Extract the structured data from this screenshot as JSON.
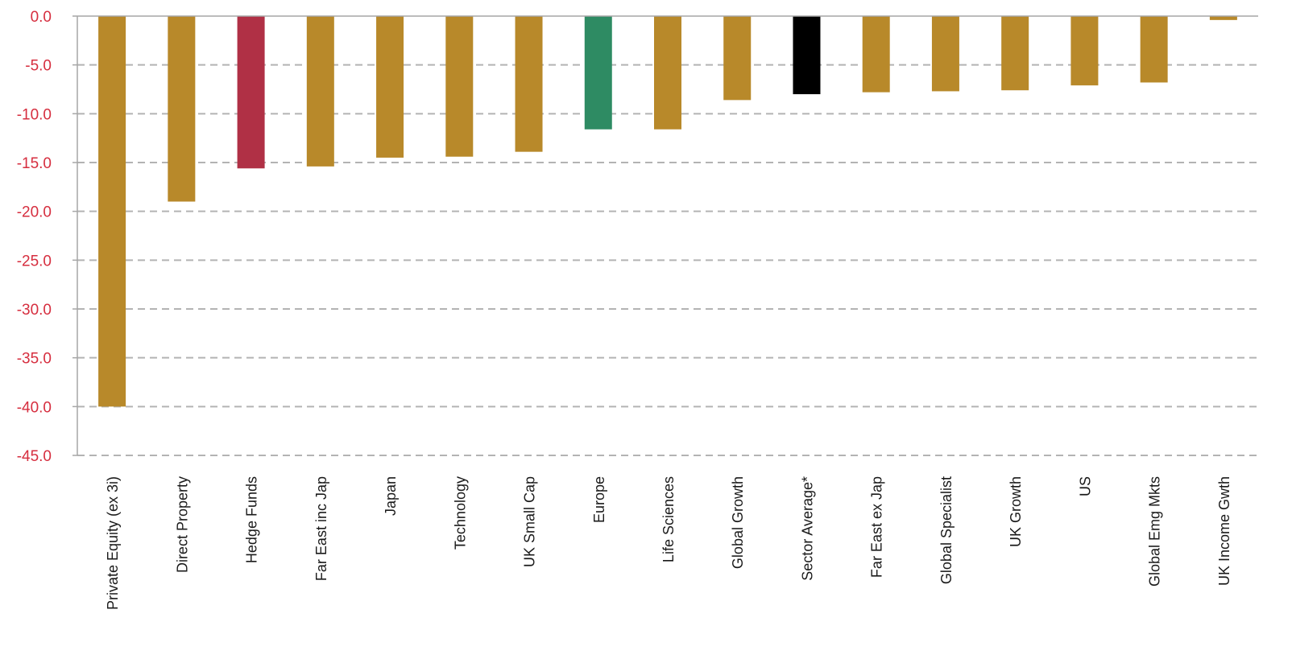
{
  "chart_data": {
    "type": "bar",
    "title": "",
    "xlabel": "",
    "ylabel": "",
    "ylim": [
      -45,
      0
    ],
    "y_ticks": [
      "0.0",
      "-5.0",
      "-10.0",
      "-15.0",
      "-20.0",
      "-25.0",
      "-30.0",
      "-35.0",
      "-40.0",
      "-45.0"
    ],
    "grid": true,
    "legend": "none",
    "categories": [
      "Private Equity (ex 3i)",
      "Direct Property",
      "Hedge Funds",
      "Far East inc Jap",
      "Japan",
      "Technology",
      "UK Small Cap",
      "Europe",
      "Life Sciences",
      "Global Growth",
      "Sector Average*",
      "Far East ex Jap",
      "Global Specialist",
      "UK Growth",
      "US",
      "Global Emg Mkts",
      "UK Income Gwth"
    ],
    "values": [
      -40.0,
      -19.0,
      -15.6,
      -15.4,
      -14.5,
      -14.4,
      -13.9,
      -11.6,
      -11.6,
      -8.6,
      -8.0,
      -7.8,
      -7.7,
      -7.6,
      -7.1,
      -6.8,
      -0.4
    ],
    "colors": {
      "default": "#b8892a",
      "Hedge Funds": "#b03045",
      "Europe": "#2e8b63",
      "Sector Average*": "#000000"
    },
    "tick_label_color": "#d62e3f"
  }
}
